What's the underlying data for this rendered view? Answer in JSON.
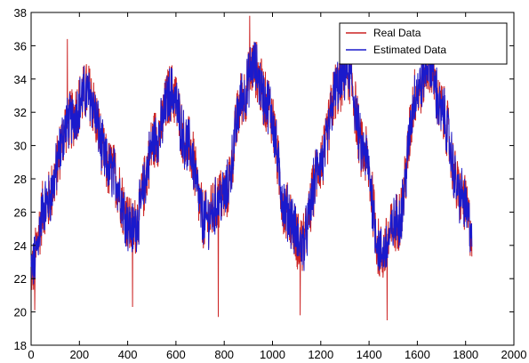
{
  "chart_data": {
    "type": "line",
    "title": "",
    "xlabel": "",
    "ylabel": "",
    "xlim": [
      0,
      2000
    ],
    "ylim": [
      18,
      38
    ],
    "x_ticks": [
      0,
      200,
      400,
      600,
      800,
      1000,
      1200,
      1400,
      1600,
      1800,
      2000
    ],
    "y_ticks": [
      18,
      20,
      22,
      24,
      26,
      28,
      30,
      32,
      34,
      36,
      38
    ],
    "grid": false,
    "legend_position": "top-right",
    "n_points": 1826,
    "trend_anchors": {
      "x": [
        0,
        60,
        160,
        230,
        330,
        420,
        520,
        580,
        650,
        720,
        800,
        880,
        920,
        980,
        1060,
        1120,
        1200,
        1270,
        1310,
        1380,
        1450,
        1520,
        1600,
        1650,
        1700,
        1780,
        1826
      ],
      "y": [
        22.5,
        26.5,
        31.5,
        33.2,
        28.5,
        25,
        30.5,
        33.2,
        30,
        25.5,
        27,
        33,
        34.8,
        32.5,
        26,
        24,
        29,
        33.5,
        34.5,
        29.5,
        23.5,
        25.5,
        33.3,
        35,
        32,
        27,
        25
      ]
    },
    "noise_amplitude": 1.6,
    "x_max": 1826,
    "series": [
      {
        "name": "Real Data",
        "color": "#cc2222"
      },
      {
        "name": "Estimated Data",
        "color": "#1a1acc"
      }
    ]
  }
}
